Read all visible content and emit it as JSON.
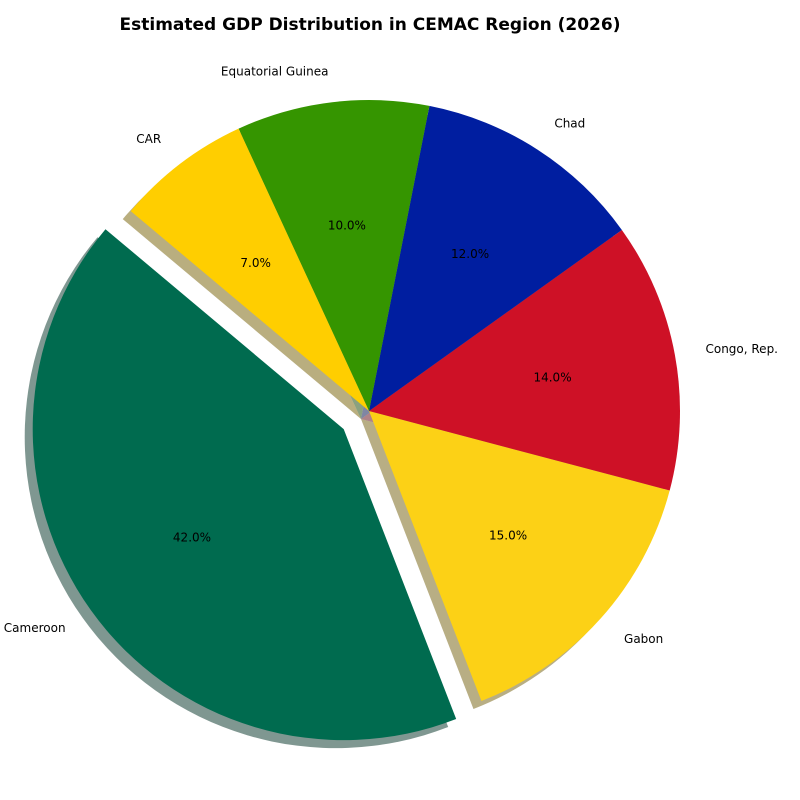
{
  "chart_data": {
    "type": "pie",
    "title": "Estimated GDP Distribution in CEMAC Region (2026)",
    "categories": [
      "Cameroon",
      "Gabon",
      "Congo, Rep.",
      "Chad",
      "Equatorial Guinea",
      "CAR"
    ],
    "values": [
      42.0,
      15.0,
      14.0,
      12.0,
      10.0,
      7.0
    ],
    "value_labels": [
      "42.0%",
      "15.0%",
      "14.0%",
      "12.0%",
      "10.0%",
      "7.0%"
    ],
    "colors": [
      "#006B4F",
      "#FCD116",
      "#CE1126",
      "#001EA0",
      "#359500",
      "#FFCE00"
    ],
    "explode": [
      0.1,
      0,
      0,
      0,
      0,
      0
    ],
    "start_angle_deg": 140,
    "direction": "counterclockwise",
    "shadow": true,
    "legend": "none"
  }
}
